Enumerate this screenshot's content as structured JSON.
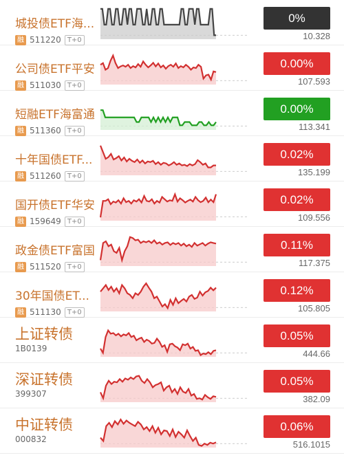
{
  "colors": {
    "up": "#e03232",
    "flat": "#333333",
    "down": "#22a022",
    "name": "#c8732d"
  },
  "rows": [
    {
      "name": "城投债ETF海...",
      "code": "511220",
      "rong": "融",
      "tag": "T+0",
      "change": "0%",
      "price": "10.328",
      "badge_color": "#333333",
      "line_color": "#444444",
      "fill_color": "#cccccc",
      "spark": [
        8,
        8,
        56,
        56,
        8,
        8,
        56,
        56,
        8,
        8,
        56,
        56,
        8,
        8,
        56,
        8,
        8,
        56,
        56,
        8,
        8,
        8,
        56,
        56,
        8,
        56,
        56,
        8,
        8,
        56,
        56,
        8,
        8,
        56,
        56,
        56,
        56,
        56,
        56,
        56,
        56,
        56,
        8,
        8,
        56,
        56,
        8,
        8,
        8,
        56,
        8,
        8,
        56,
        56,
        56,
        56,
        56,
        8,
        8,
        88,
        88
      ]
    },
    {
      "name": "公司债ETF平安",
      "code": "511030",
      "rong": "融",
      "tag": "T+0",
      "change": "0.00%",
      "price": "107.593",
      "badge_color": "#e03232",
      "line_color": "#d23030",
      "fill_color": "#f7c9c9",
      "spark": [
        40,
        35,
        55,
        50,
        28,
        12,
        35,
        50,
        45,
        42,
        46,
        40,
        50,
        44,
        48,
        38,
        46,
        30,
        40,
        48,
        42,
        34,
        45,
        36,
        48,
        42,
        52,
        44,
        40,
        46,
        36,
        50,
        44,
        48,
        40,
        46,
        55,
        48,
        50,
        40,
        46,
        82,
        72,
        70,
        85,
        60,
        62
      ]
    },
    {
      "name": "短融ETF海富通",
      "code": "511360",
      "rong": "融",
      "tag": "T+0",
      "change": "0.00%",
      "price": "113.341",
      "badge_color": "#22a022",
      "line_color": "#22a022",
      "fill_color": "#d4efd4",
      "spark": [
        40,
        40,
        62,
        62,
        62,
        62,
        62,
        62,
        62,
        62,
        62,
        62,
        62,
        62,
        62,
        76,
        76,
        62,
        62,
        62,
        62,
        76,
        62,
        76,
        62,
        76,
        62,
        76,
        62,
        76,
        62,
        62,
        62,
        86,
        86,
        76,
        76,
        76,
        86,
        86,
        86,
        76,
        76,
        86,
        86,
        76,
        86,
        86,
        76
      ]
    },
    {
      "name": "十年国债ETF...",
      "code": "511260",
      "rong": "融",
      "tag": "T+0",
      "change": "0.02%",
      "price": "135.199",
      "badge_color": "#e03232",
      "line_color": "#d23030",
      "fill_color": "#f7c9c9",
      "spark": [
        10,
        30,
        50,
        45,
        35,
        52,
        48,
        42,
        55,
        46,
        58,
        50,
        56,
        60,
        52,
        62,
        55,
        64,
        58,
        60,
        56,
        66,
        60,
        68,
        62,
        64,
        70,
        66,
        60,
        68,
        64,
        70,
        68,
        72,
        66,
        70,
        66,
        54,
        60,
        68,
        64,
        76,
        76,
        70,
        70
      ]
    },
    {
      "name": "国开债ETF华安",
      "code": "159649",
      "rong": "融",
      "tag": "T+0",
      "change": "0.02%",
      "price": "109.556",
      "badge_color": "#e03232",
      "line_color": "#d23030",
      "fill_color": "#f7c9c9",
      "spark": [
        90,
        40,
        40,
        35,
        50,
        42,
        45,
        38,
        48,
        32,
        44,
        40,
        48,
        38,
        42,
        35,
        45,
        25,
        40,
        42,
        35,
        48,
        40,
        45,
        28,
        35,
        42,
        38,
        40,
        20,
        42,
        32,
        38,
        45,
        40,
        36,
        42,
        28,
        38,
        44,
        40,
        30,
        44,
        36,
        44,
        20
      ]
    },
    {
      "name": "政金债ETF富国",
      "code": "511520",
      "rong": "融",
      "tag": "T+0",
      "change": "0.11%",
      "price": "117.375",
      "badge_color": "#e03232",
      "line_color": "#d23030",
      "fill_color": "#f7c9c9",
      "spark": [
        82,
        30,
        25,
        40,
        35,
        55,
        60,
        45,
        82,
        55,
        40,
        12,
        15,
        22,
        20,
        30,
        25,
        28,
        24,
        30,
        22,
        32,
        28,
        35,
        30,
        28,
        36,
        30,
        34,
        30,
        38,
        32,
        40,
        35,
        42,
        30,
        38,
        34,
        30,
        38,
        32,
        28,
        30,
        32
      ]
    },
    {
      "name": "30年国债ET...",
      "code": "511130",
      "rong": "融",
      "tag": "T+0",
      "change": "0.12%",
      "price": "105.805",
      "badge_color": "#e03232",
      "line_color": "#d23030",
      "fill_color": "#f7c9c9",
      "spark": [
        40,
        30,
        20,
        35,
        25,
        40,
        30,
        45,
        20,
        30,
        45,
        50,
        60,
        45,
        50,
        40,
        25,
        15,
        28,
        40,
        60,
        55,
        70,
        85,
        78,
        90,
        65,
        80,
        60,
        75,
        68,
        62,
        70,
        55,
        50,
        62,
        58,
        40,
        52,
        42,
        38,
        28,
        36,
        28
      ]
    },
    {
      "name": "上证转债",
      "code": "1B0139",
      "change": "0.05%",
      "price": "444.66",
      "big": true,
      "badge_color": "#e03232",
      "line_color": "#d23030",
      "fill_color": "#f7c9c9",
      "spark": [
        75,
        88,
        40,
        20,
        30,
        28,
        35,
        30,
        38,
        32,
        35,
        28,
        40,
        36,
        50,
        45,
        42,
        55,
        48,
        52,
        60,
        58,
        45,
        55,
        70,
        65,
        85,
        62,
        60,
        68,
        72,
        80,
        62,
        65,
        60,
        75,
        70,
        82,
        80,
        95,
        90,
        92,
        86,
        92,
        82,
        80
      ]
    },
    {
      "name": "深证转债",
      "code": "399307",
      "change": "0.05%",
      "price": "382.09",
      "big": true,
      "badge_color": "#e03232",
      "line_color": "#d23030",
      "fill_color": "#f7c9c9",
      "spark": [
        70,
        88,
        50,
        35,
        45,
        38,
        40,
        30,
        38,
        28,
        32,
        25,
        30,
        22,
        20,
        35,
        42,
        30,
        40,
        55,
        48,
        45,
        40,
        65,
        55,
        50,
        70,
        60,
        75,
        55,
        68,
        72,
        60,
        80,
        75,
        90,
        88,
        92,
        78,
        85,
        90,
        82,
        84
      ]
    },
    {
      "name": "中证转债",
      "code": "000832",
      "change": "0.06%",
      "price": "516.1015",
      "big": true,
      "badge_color": "#e03232",
      "line_color": "#d23030",
      "fill_color": "#f7c9c9",
      "spark": [
        70,
        80,
        35,
        25,
        38,
        20,
        30,
        15,
        28,
        18,
        25,
        30,
        35,
        22,
        30,
        45,
        38,
        50,
        35,
        55,
        40,
        60,
        48,
        50,
        65,
        45,
        68,
        52,
        60,
        70,
        48,
        65,
        80,
        70,
        92,
        95,
        88,
        92,
        85,
        88,
        84
      ]
    }
  ]
}
